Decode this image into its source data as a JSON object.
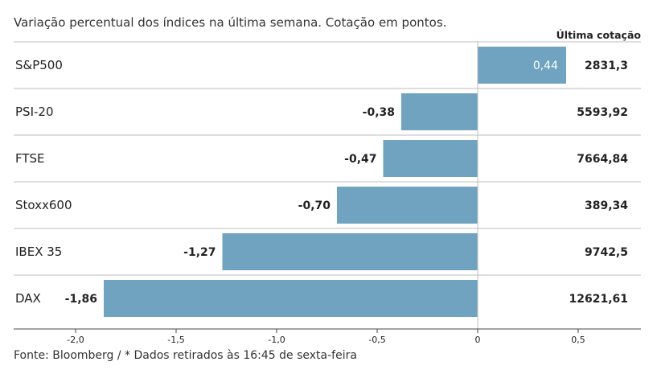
{
  "subtitle": "Variação percentual dos índices na última semana. Cotação em pontos.",
  "column_header": "Última cotação",
  "source": "Fonte: Bloomberg / * Dados retirados às 16:45 de sexta-feira",
  "colors": {
    "bar": "#6fa3bf",
    "row_line": "#bdbdbd",
    "axis_line": "#444444",
    "text": "#222222",
    "label_on_bar": "#ffffff"
  },
  "chart_data": {
    "type": "bar",
    "orientation": "horizontal",
    "categories": [
      "S&P500",
      "PSI-20",
      "FTSE",
      "Stoxx600",
      "IBEX 35",
      "DAX"
    ],
    "values": [
      0.44,
      -0.38,
      -0.47,
      -0.7,
      -1.27,
      -1.86
    ],
    "value_labels": [
      "0,44",
      "-0,38",
      "-0,47",
      "-0,70",
      "-1,27",
      "-1,86"
    ],
    "last_quote_labels": [
      "2831,3",
      "5593,92",
      "7664,84",
      "389,34",
      "9742,5",
      "12621,61"
    ],
    "xlim": [
      -2.0,
      0.5
    ],
    "xticks": [
      -2.0,
      -1.5,
      -1.0,
      -0.5,
      0,
      0.5
    ],
    "xtick_labels": [
      "-2,0",
      "-1,5",
      "-1,0",
      "-0,5",
      "0",
      "0,5"
    ],
    "xlabel": "",
    "ylabel": "",
    "grid": false,
    "legend": "none"
  }
}
